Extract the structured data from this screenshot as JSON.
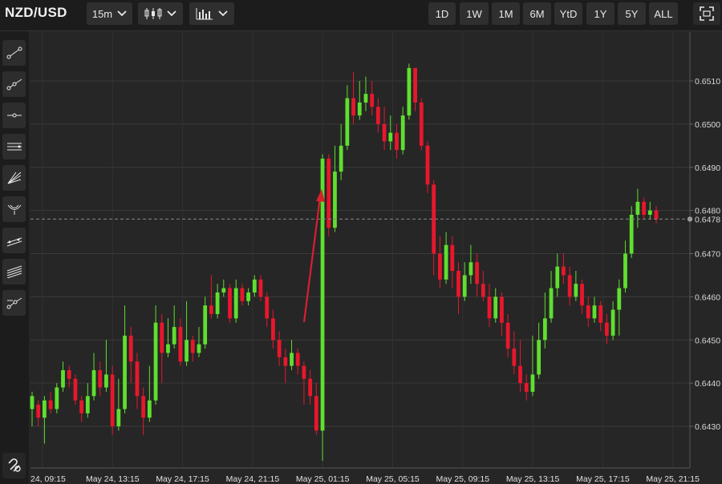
{
  "header": {
    "symbol": "NZD/USD",
    "interval": "15m",
    "ranges": [
      "1D",
      "1W",
      "1M",
      "6M",
      "YtD",
      "1Y",
      "5Y",
      "ALL"
    ]
  },
  "icons": {
    "interval_dropdown": "chevron-down-icon",
    "chart_type": "candlestick-icon",
    "indicators": "bar-chart-icon",
    "fullscreen": "fullscreen-icon"
  },
  "sidebar": {
    "tools": [
      "trend-line-icon",
      "ray-icon",
      "horizontal-line-icon",
      "parallel-channel-icon",
      "fan-icon",
      "pitchfork-icon",
      "regression-channel-icon",
      "fib-channel-icon",
      "path-icon"
    ],
    "bottom_tool": "magnet-icon"
  },
  "colors": {
    "up": "#5fdf2f",
    "down": "#e8172c",
    "arrow": "#d62030",
    "background": "#262626",
    "last_price_line": "#8a8a8a"
  },
  "chart_data": {
    "type": "candlestick",
    "title": "NZD/USD",
    "interval": "15m",
    "ylim": [
      0.6421,
      0.6515
    ],
    "y_ticks": [
      "0.6430",
      "0.6440",
      "0.6450",
      "0.6460",
      "0.6470",
      "0.6480",
      "0.6490",
      "0.6500",
      "0.6510"
    ],
    "last_price_label": "0.6478",
    "last_price": 0.6478,
    "x_ticks": [
      "24, 09:15",
      "May 24, 13:15",
      "May 24, 17:15",
      "May 24, 21:15",
      "May 25, 01:15",
      "May 25, 05:15",
      "May 25, 09:15",
      "May 25, 13:15",
      "May 25, 17:15",
      "May 25, 21:15"
    ],
    "grid": true,
    "candles": [
      [
        0.6434,
        0.6437,
        0.643,
        0.6438
      ],
      [
        0.6435,
        0.6432,
        0.643,
        0.6436
      ],
      [
        0.6432,
        0.6436,
        0.6426,
        0.6437
      ],
      [
        0.6436,
        0.6434,
        0.6433,
        0.6438
      ],
      [
        0.6434,
        0.6439,
        0.6433,
        0.644
      ],
      [
        0.6439,
        0.6443,
        0.6438,
        0.6445
      ],
      [
        0.6443,
        0.6441,
        0.6439,
        0.6444
      ],
      [
        0.6441,
        0.6436,
        0.6435,
        0.6442
      ],
      [
        0.6436,
        0.6433,
        0.6431,
        0.6437
      ],
      [
        0.6433,
        0.6437,
        0.6432,
        0.644
      ],
      [
        0.6437,
        0.6443,
        0.6436,
        0.6447
      ],
      [
        0.6443,
        0.6439,
        0.6437,
        0.6445
      ],
      [
        0.6439,
        0.6442,
        0.6438,
        0.645
      ],
      [
        0.6442,
        0.643,
        0.6428,
        0.6444
      ],
      [
        0.643,
        0.6434,
        0.6429,
        0.6441
      ],
      [
        0.6434,
        0.6451,
        0.6433,
        0.6458
      ],
      [
        0.6451,
        0.6445,
        0.644,
        0.6453
      ],
      [
        0.6445,
        0.6437,
        0.6434,
        0.6447
      ],
      [
        0.6437,
        0.6432,
        0.6428,
        0.6439
      ],
      [
        0.6432,
        0.6436,
        0.6431,
        0.6444
      ],
      [
        0.6436,
        0.6454,
        0.6435,
        0.6458
      ],
      [
        0.6454,
        0.6447,
        0.644,
        0.6456
      ],
      [
        0.6447,
        0.6449,
        0.6446,
        0.6455
      ],
      [
        0.6449,
        0.6453,
        0.6448,
        0.6458
      ],
      [
        0.6453,
        0.6445,
        0.6444,
        0.6455
      ],
      [
        0.6445,
        0.645,
        0.6444,
        0.6459
      ],
      [
        0.645,
        0.6447,
        0.6445,
        0.6451
      ],
      [
        0.6447,
        0.6449,
        0.6446,
        0.6453
      ],
      [
        0.6449,
        0.6458,
        0.6448,
        0.646
      ],
      [
        0.6458,
        0.6456,
        0.6455,
        0.6465
      ],
      [
        0.6456,
        0.6461,
        0.6455,
        0.6463
      ],
      [
        0.6461,
        0.6462,
        0.646,
        0.6464
      ],
      [
        0.6462,
        0.6455,
        0.6454,
        0.6463
      ],
      [
        0.6455,
        0.6462,
        0.6454,
        0.6464
      ],
      [
        0.6462,
        0.6459,
        0.6458,
        0.6463
      ],
      [
        0.6459,
        0.6461,
        0.6458,
        0.6462
      ],
      [
        0.6461,
        0.6464,
        0.646,
        0.6465
      ],
      [
        0.6464,
        0.646,
        0.6459,
        0.6465
      ],
      [
        0.646,
        0.6455,
        0.6453,
        0.6461
      ],
      [
        0.6455,
        0.645,
        0.6448,
        0.6457
      ],
      [
        0.645,
        0.6446,
        0.6444,
        0.6452
      ],
      [
        0.6446,
        0.6444,
        0.644,
        0.6448
      ],
      [
        0.6444,
        0.6447,
        0.6443,
        0.645
      ],
      [
        0.6447,
        0.6444,
        0.6442,
        0.6448
      ],
      [
        0.6444,
        0.6441,
        0.6435,
        0.6445
      ],
      [
        0.6441,
        0.6437,
        0.6435,
        0.6443
      ],
      [
        0.6437,
        0.6429,
        0.6428,
        0.644
      ],
      [
        0.6429,
        0.6492,
        0.6422,
        0.6493
      ],
      [
        0.6492,
        0.6476,
        0.6474,
        0.6493
      ],
      [
        0.6476,
        0.6489,
        0.6475,
        0.6495
      ],
      [
        0.6489,
        0.6495,
        0.6487,
        0.65
      ],
      [
        0.6495,
        0.6506,
        0.6494,
        0.6509
      ],
      [
        0.6506,
        0.6502,
        0.65,
        0.6512
      ],
      [
        0.6502,
        0.6505,
        0.6501,
        0.651
      ],
      [
        0.6505,
        0.6507,
        0.6503,
        0.6511
      ],
      [
        0.6507,
        0.6504,
        0.6502,
        0.651
      ],
      [
        0.6504,
        0.65,
        0.6498,
        0.6506
      ],
      [
        0.65,
        0.6496,
        0.6494,
        0.6504
      ],
      [
        0.6496,
        0.6498,
        0.6494,
        0.6502
      ],
      [
        0.6498,
        0.6494,
        0.6492,
        0.65
      ],
      [
        0.6494,
        0.6502,
        0.6493,
        0.6504
      ],
      [
        0.6502,
        0.6513,
        0.6501,
        0.6514
      ],
      [
        0.6513,
        0.6505,
        0.6503,
        0.6513
      ],
      [
        0.6505,
        0.6495,
        0.6494,
        0.6506
      ],
      [
        0.6495,
        0.6486,
        0.6484,
        0.6496
      ],
      [
        0.6486,
        0.647,
        0.6465,
        0.6487
      ],
      [
        0.647,
        0.6464,
        0.6462,
        0.6474
      ],
      [
        0.6464,
        0.6472,
        0.6463,
        0.6475
      ],
      [
        0.6472,
        0.6466,
        0.6462,
        0.6474
      ],
      [
        0.6466,
        0.646,
        0.6456,
        0.6468
      ],
      [
        0.646,
        0.6465,
        0.6459,
        0.6468
      ],
      [
        0.6465,
        0.6468,
        0.6463,
        0.6472
      ],
      [
        0.6468,
        0.6463,
        0.646,
        0.647
      ],
      [
        0.6463,
        0.646,
        0.6459,
        0.6466
      ],
      [
        0.646,
        0.6455,
        0.6453,
        0.6463
      ],
      [
        0.6455,
        0.646,
        0.6454,
        0.6462
      ],
      [
        0.646,
        0.6454,
        0.6451,
        0.6461
      ],
      [
        0.6454,
        0.6448,
        0.6446,
        0.6456
      ],
      [
        0.6448,
        0.6444,
        0.6442,
        0.6452
      ],
      [
        0.6444,
        0.644,
        0.6438,
        0.645
      ],
      [
        0.644,
        0.6438,
        0.6436,
        0.6442
      ],
      [
        0.6438,
        0.6442,
        0.6437,
        0.6451
      ],
      [
        0.6442,
        0.645,
        0.6441,
        0.6454
      ],
      [
        0.645,
        0.6455,
        0.6448,
        0.6461
      ],
      [
        0.6455,
        0.6462,
        0.6454,
        0.6466
      ],
      [
        0.6462,
        0.6467,
        0.646,
        0.647
      ],
      [
        0.6467,
        0.6465,
        0.6463,
        0.647
      ],
      [
        0.6465,
        0.646,
        0.6458,
        0.6467
      ],
      [
        0.646,
        0.6463,
        0.6459,
        0.6466
      ],
      [
        0.6463,
        0.6458,
        0.6456,
        0.6464
      ],
      [
        0.6458,
        0.6455,
        0.6453,
        0.646
      ],
      [
        0.6455,
        0.6458,
        0.6454,
        0.646
      ],
      [
        0.6458,
        0.6454,
        0.6452,
        0.6459
      ],
      [
        0.6454,
        0.6451,
        0.6449,
        0.6456
      ],
      [
        0.6451,
        0.6457,
        0.645,
        0.6459
      ],
      [
        0.6457,
        0.6462,
        0.6451,
        0.6464
      ],
      [
        0.6462,
        0.647,
        0.6461,
        0.6473
      ],
      [
        0.647,
        0.6479,
        0.6469,
        0.6481
      ],
      [
        0.6479,
        0.6482,
        0.6476,
        0.6485
      ],
      [
        0.6482,
        0.6479,
        0.6478,
        0.6483
      ],
      [
        0.6479,
        0.648,
        0.6478,
        0.6482
      ],
      [
        0.648,
        0.6478,
        0.6477,
        0.6481
      ]
    ]
  }
}
